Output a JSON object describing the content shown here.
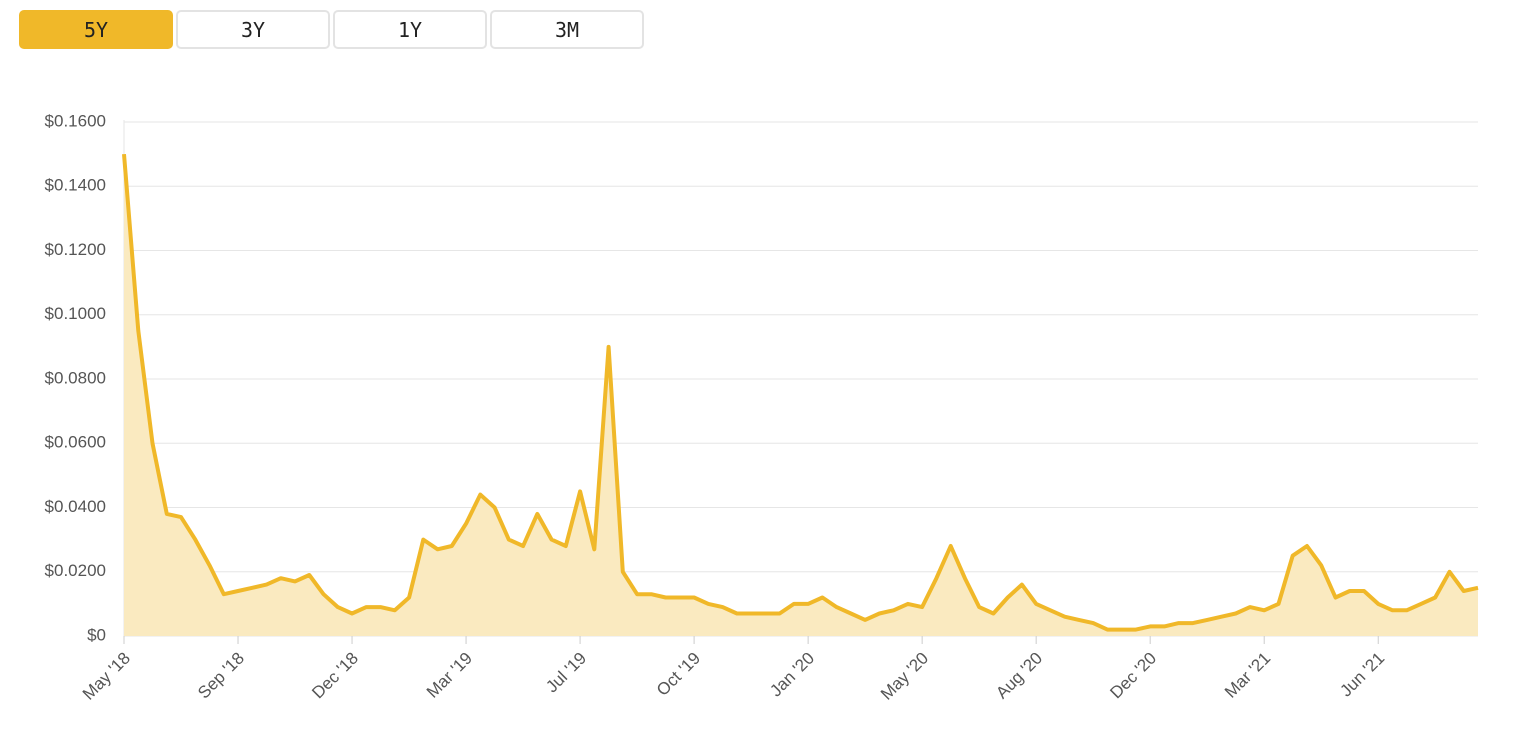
{
  "buttons": [
    "5Y",
    "3Y",
    "1Y",
    "3M"
  ],
  "active_button": 0,
  "chart_data": {
    "type": "area",
    "categories": [
      "May '18",
      null,
      null,
      null,
      null,
      null,
      null,
      null,
      "Sep '18",
      null,
      null,
      null,
      null,
      null,
      null,
      null,
      "Dec '18",
      null,
      null,
      null,
      null,
      null,
      null,
      null,
      "Mar '19",
      null,
      null,
      null,
      null,
      null,
      null,
      null,
      "Jul '19",
      null,
      null,
      null,
      null,
      null,
      null,
      null,
      "Oct '19",
      null,
      null,
      null,
      null,
      null,
      null,
      null,
      "Jan '20",
      null,
      null,
      null,
      null,
      null,
      null,
      null,
      "May '20",
      null,
      null,
      null,
      null,
      null,
      null,
      null,
      "Aug '20",
      null,
      null,
      null,
      null,
      null,
      null,
      null,
      "Dec '20",
      null,
      null,
      null,
      null,
      null,
      null,
      null,
      "Mar '21",
      null,
      null,
      null,
      null,
      null,
      null,
      null,
      "Jun '21",
      null,
      null,
      null,
      null,
      null,
      null,
      null
    ],
    "series": [
      {
        "color": "#f0b829",
        "fill": "#faeac0",
        "values": [
          0.15,
          0.095,
          0.06,
          0.038,
          0.037,
          0.03,
          0.022,
          0.013,
          0.014,
          0.015,
          0.016,
          0.018,
          0.017,
          0.019,
          0.013,
          0.009,
          0.007,
          0.009,
          0.009,
          0.008,
          0.012,
          0.03,
          0.027,
          0.028,
          0.035,
          0.044,
          0.04,
          0.03,
          0.028,
          0.038,
          0.03,
          0.028,
          0.045,
          0.027,
          0.09,
          0.02,
          0.013,
          0.013,
          0.012,
          0.012,
          0.012,
          0.01,
          0.009,
          0.007,
          0.007,
          0.007,
          0.007,
          0.01,
          0.01,
          0.012,
          0.009,
          0.007,
          0.005,
          0.007,
          0.008,
          0.01,
          0.009,
          0.018,
          0.028,
          0.018,
          0.009,
          0.007,
          0.012,
          0.016,
          0.01,
          0.008,
          0.006,
          0.005,
          0.004,
          0.002,
          0.002,
          0.002,
          0.003,
          0.003,
          0.004,
          0.004,
          0.005,
          0.006,
          0.007,
          0.009,
          0.008,
          0.01,
          0.025,
          0.028,
          0.022,
          0.012,
          0.014,
          0.014,
          0.01,
          0.008,
          0.008,
          0.01,
          0.012,
          0.02,
          0.014,
          0.015
        ]
      }
    ],
    "ylim": [
      0,
      0.16
    ],
    "yticks": [
      {
        "value": 0,
        "label": "$0"
      },
      {
        "value": 0.02,
        "label": "$0.0200"
      },
      {
        "value": 0.04,
        "label": "$0.0400"
      },
      {
        "value": 0.06,
        "label": "$0.0600"
      },
      {
        "value": 0.08,
        "label": "$0.0800"
      },
      {
        "value": 0.1,
        "label": "$0.1000"
      },
      {
        "value": 0.12,
        "label": "$0.1200"
      },
      {
        "value": 0.14,
        "label": "$0.1400"
      },
      {
        "value": 0.16,
        "label": "$0.1600"
      }
    ],
    "grid": true
  }
}
